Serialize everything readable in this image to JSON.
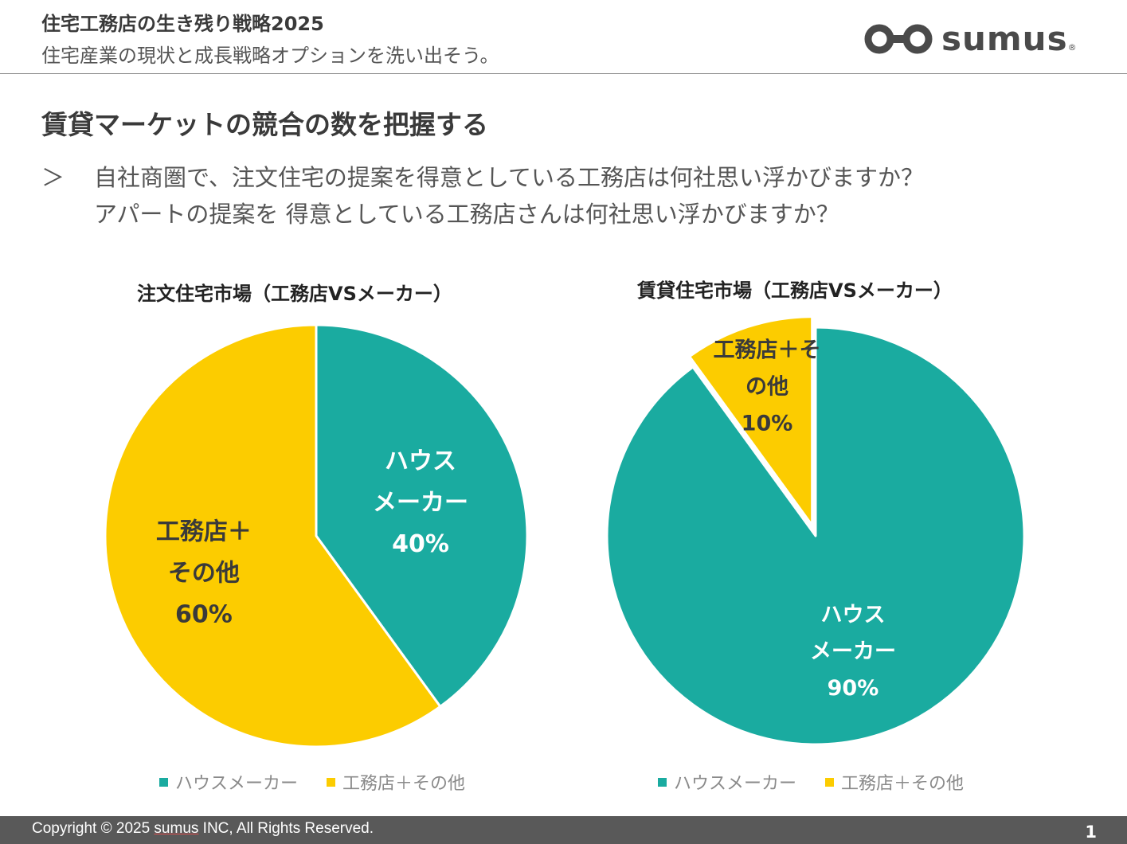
{
  "header": {
    "title": "住宅工務店の生き残り戦略2025",
    "subtitle": "住宅産業の現状と成長戦略オプションを洗い出そう。",
    "logo_text": "sumus",
    "logo_reg": "®"
  },
  "page_heading": "賃貸マーケットの競合の数を把握する",
  "question": {
    "marker": "＞",
    "line1": "自社商圏で、注文住宅の提案を得意としている工務店は何社思い浮かびますか？",
    "line2": "アパートの提案を 得意としている工務店さんは何社思い浮かびますか？"
  },
  "colors": {
    "teal": "#1aaba0",
    "yellow": "#fccc00",
    "label_dark": "#3a3a3a",
    "label_light": "#ffffff"
  },
  "chart_data": [
    {
      "type": "pie",
      "title": "注文住宅市場（工務店VSメーカー）",
      "slices": [
        {
          "name": "ハウスメーカー",
          "value": 40,
          "label_lines": [
            "ハウス",
            "メーカー",
            "40%"
          ],
          "color": "#1aaba0"
        },
        {
          "name": "工務店＋その他",
          "value": 60,
          "label_lines": [
            "工務店＋",
            "その他",
            "60%"
          ],
          "color": "#fccc00"
        }
      ],
      "legend": [
        "ハウスメーカー",
        "工務店＋その他"
      ],
      "legend_position": "bottom"
    },
    {
      "type": "pie",
      "title": "賃貸住宅市場（工務店VSメーカー）",
      "slices": [
        {
          "name": "ハウスメーカー",
          "value": 90,
          "label_lines": [
            "ハウス",
            "メーカー",
            "90%"
          ],
          "color": "#1aaba0"
        },
        {
          "name": "工務店＋その他",
          "value": 10,
          "label_lines": [
            "工務店＋そ",
            "の他",
            "10%"
          ],
          "color": "#fccc00",
          "exploded": true
        }
      ],
      "legend": [
        "ハウスメーカー",
        "工務店＋その他"
      ],
      "legend_position": "bottom"
    }
  ],
  "footer": {
    "copyright_prefix": "Copyright © 2025 ",
    "copyright_brand": "sumus",
    "copyright_suffix": " INC, All Rights Reserved.",
    "page_number": "1"
  }
}
